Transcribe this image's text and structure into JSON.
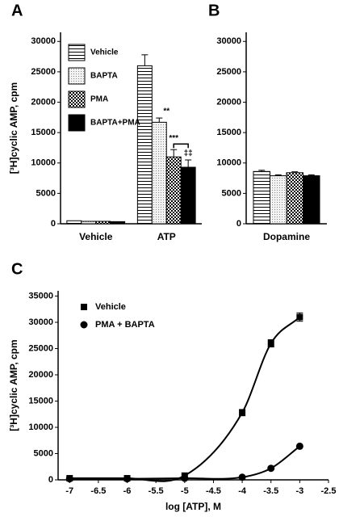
{
  "chart_data": [
    {
      "type": "bar",
      "panel_label": "A",
      "ylabel": "[³H]cyclic AMP, cpm",
      "categories": [
        "Vehicle",
        "ATP"
      ],
      "series": [
        {
          "name": "Vehicle",
          "color": "#000000",
          "pattern": "hstripe",
          "values": [
            500,
            26000
          ],
          "errors": [
            null,
            1800
          ]
        },
        {
          "name": "BAPTA",
          "color": "#000000",
          "pattern": "dots",
          "values": [
            400,
            16700
          ],
          "errors": [
            null,
            700
          ],
          "annotations": [
            null,
            "**"
          ]
        },
        {
          "name": "PMA",
          "color": "#000000",
          "pattern": "checker",
          "values": [
            400,
            11000
          ],
          "errors": [
            null,
            1200
          ],
          "annotations": [
            null,
            "***"
          ]
        },
        {
          "name": "BAPTA+PMA",
          "color": "#000000",
          "pattern": "solid",
          "values": [
            350,
            9300
          ],
          "errors": [
            null,
            1200
          ],
          "annotations": [
            null,
            "‡‡"
          ]
        }
      ],
      "ylim": [
        0,
        31500
      ],
      "yticks": [
        0,
        5000,
        10000,
        15000,
        20000,
        25000,
        30000
      ],
      "legend_position": "upper left"
    },
    {
      "type": "bar",
      "panel_label": "B",
      "categories": [
        "Dopamine"
      ],
      "series": [
        {
          "color": "#000000",
          "pattern": "hstripe",
          "values": [
            8600
          ],
          "errors": [
            200
          ]
        },
        {
          "color": "#000000",
          "pattern": "dots",
          "values": [
            7900
          ],
          "errors": [
            150
          ]
        },
        {
          "color": "#000000",
          "pattern": "checker",
          "values": [
            8400
          ],
          "errors": [
            150
          ]
        },
        {
          "color": "#000000",
          "pattern": "solid",
          "values": [
            7900
          ],
          "errors": [
            150
          ]
        }
      ],
      "ylim": [
        0,
        31500
      ],
      "yticks": [
        0,
        5000,
        10000,
        15000,
        20000,
        25000,
        30000
      ]
    },
    {
      "type": "line",
      "panel_label": "C",
      "xlabel": "log [ATP], M",
      "ylabel": "[³H]cyclic AMP, cpm",
      "x": [
        -7,
        -6,
        -5,
        -4,
        -3.5,
        -3
      ],
      "series": [
        {
          "name": "Vehicle",
          "color": "#000000",
          "marker": "square",
          "values": [
            300,
            300,
            800,
            12800,
            26000,
            31000
          ],
          "errors": [
            null,
            null,
            null,
            600,
            700,
            800
          ]
        },
        {
          "name": "PMA + BAPTA",
          "color": "#000000",
          "marker": "circle",
          "values": [
            200,
            200,
            300,
            500,
            2200,
            6400
          ],
          "errors": [
            null,
            null,
            null,
            null,
            null,
            null
          ]
        }
      ],
      "xlim": [
        -7.2,
        -2.5
      ],
      "xticks": [
        -7,
        -6.5,
        -6,
        -5.5,
        -5,
        -4.5,
        -4,
        -3.5,
        -3,
        -2.5
      ],
      "ylim": [
        0,
        36000
      ],
      "yticks": [
        0,
        5000,
        10000,
        15000,
        20000,
        25000,
        30000,
        35000
      ],
      "legend_position": "upper left"
    }
  ]
}
